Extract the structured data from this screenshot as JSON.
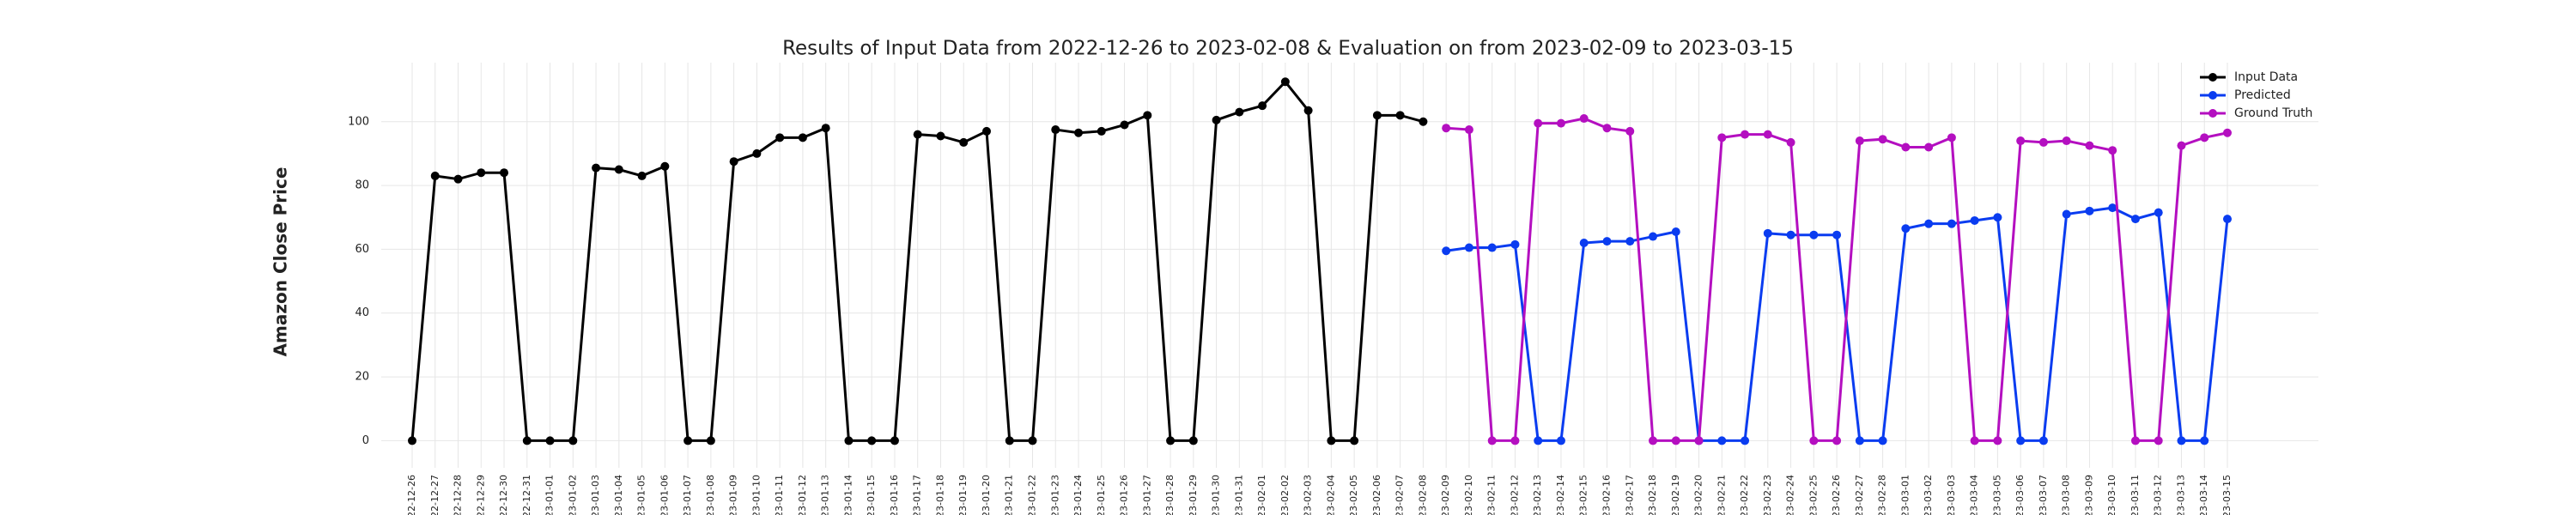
{
  "chart_data": {
    "type": "line",
    "title": "Results of Input Data from 2022-12-26 to 2023-02-08 & Evaluation on from 2023-02-09 to 2023-03-15",
    "y_label": "Amazon Close Price",
    "categories": [
      "2022-12-26",
      "2022-12-27",
      "2022-12-28",
      "2022-12-29",
      "2022-12-30",
      "2022-12-31",
      "2023-01-01",
      "2023-01-02",
      "2023-01-03",
      "2023-01-04",
      "2023-01-05",
      "2023-01-06",
      "2023-01-07",
      "2023-01-08",
      "2023-01-09",
      "2023-01-10",
      "2023-01-11",
      "2023-01-12",
      "2023-01-13",
      "2023-01-14",
      "2023-01-15",
      "2023-01-16",
      "2023-01-17",
      "2023-01-18",
      "2023-01-19",
      "2023-01-20",
      "2023-01-21",
      "2023-01-22",
      "2023-01-23",
      "2023-01-24",
      "2023-01-25",
      "2023-01-26",
      "2023-01-27",
      "2023-01-28",
      "2023-01-29",
      "2023-01-30",
      "2023-01-31",
      "2023-02-01",
      "2023-02-02",
      "2023-02-03",
      "2023-02-04",
      "2023-02-05",
      "2023-02-06",
      "2023-02-07",
      "2023-02-08",
      "2023-02-09",
      "2023-02-10",
      "2023-02-11",
      "2023-02-12",
      "2023-02-13",
      "2023-02-14",
      "2023-02-15",
      "2023-02-16",
      "2023-02-17",
      "2023-02-18",
      "2023-02-19",
      "2023-02-20",
      "2023-02-21",
      "2023-02-22",
      "2023-02-23",
      "2023-02-24",
      "2023-02-25",
      "2023-02-26",
      "2023-02-27",
      "2023-02-28",
      "2023-03-01",
      "2023-03-02",
      "2023-03-03",
      "2023-03-04",
      "2023-03-05",
      "2023-03-06",
      "2023-03-07",
      "2023-03-08",
      "2023-03-09",
      "2023-03-10",
      "2023-03-11",
      "2023-03-12",
      "2023-03-13",
      "2023-03-14",
      "2023-03-15"
    ],
    "series": [
      {
        "name": "Input Data",
        "color": "#000000",
        "values": [
          0,
          83,
          82,
          84,
          84,
          0,
          0,
          0,
          85.5,
          85,
          83,
          86,
          0,
          0,
          87.5,
          90,
          95,
          95,
          98,
          0,
          0,
          0,
          96,
          95.5,
          93.5,
          97,
          0,
          0,
          97.5,
          96.5,
          97,
          99,
          102,
          0,
          0,
          100.5,
          103,
          105,
          112.5,
          103.5,
          0,
          0,
          102,
          102,
          100,
          null,
          null,
          null,
          null,
          null,
          null,
          null,
          null,
          null,
          null,
          null,
          null,
          null,
          null,
          null,
          null,
          null,
          null,
          null,
          null,
          null,
          null,
          null,
          null,
          null,
          null,
          null,
          null,
          null,
          null,
          null,
          null,
          null,
          null,
          null
        ]
      },
      {
        "name": "Predicted",
        "color": "#0a3cf0",
        "values": [
          null,
          null,
          null,
          null,
          null,
          null,
          null,
          null,
          null,
          null,
          null,
          null,
          null,
          null,
          null,
          null,
          null,
          null,
          null,
          null,
          null,
          null,
          null,
          null,
          null,
          null,
          null,
          null,
          null,
          null,
          null,
          null,
          null,
          null,
          null,
          null,
          null,
          null,
          null,
          null,
          null,
          null,
          null,
          null,
          null,
          59.5,
          60.5,
          60.5,
          61.5,
          0,
          0,
          62,
          62.5,
          62.5,
          64,
          65.5,
          0,
          0,
          0,
          65,
          64.5,
          64.5,
          64.5,
          0,
          0,
          66.5,
          68,
          68,
          69,
          70,
          0,
          0,
          71,
          72,
          73,
          69.5,
          71.5,
          0,
          0,
          69.5
        ]
      },
      {
        "name": "Ground Truth",
        "color": "#b40fc0",
        "values": [
          null,
          null,
          null,
          null,
          null,
          null,
          null,
          null,
          null,
          null,
          null,
          null,
          null,
          null,
          null,
          null,
          null,
          null,
          null,
          null,
          null,
          null,
          null,
          null,
          null,
          null,
          null,
          null,
          null,
          null,
          null,
          null,
          null,
          null,
          null,
          null,
          null,
          null,
          null,
          null,
          null,
          null,
          null,
          null,
          null,
          98,
          97.5,
          0,
          0,
          99.5,
          99.5,
          101,
          98,
          97,
          0,
          0,
          0,
          95,
          96,
          96,
          93.5,
          0,
          0,
          94,
          94.5,
          92,
          92,
          95,
          0,
          0,
          94,
          93.5,
          94,
          92.5,
          91,
          0,
          0,
          92.5,
          95,
          96.5
        ]
      }
    ],
    "ylim": [
      -8.5,
      118.5
    ],
    "yticks": [
      0,
      20,
      40,
      60,
      80,
      100
    ],
    "grid": true,
    "legend": "upper right"
  }
}
